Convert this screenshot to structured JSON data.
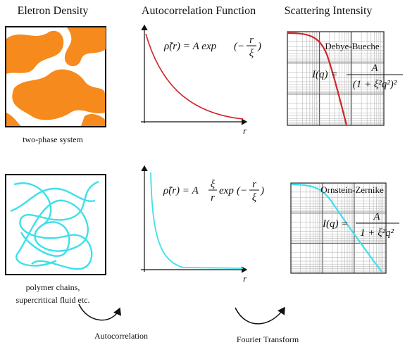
{
  "headers": [
    "Eletron Density",
    "Autocorrelation Function",
    "Scattering Intensity"
  ],
  "rows": [
    {
      "caption": [
        "two-phase system"
      ],
      "equation": [
        "ρ̃(r) = A exp",
        "(−",
        {
          "num": "r",
          "den": "ξ"
        },
        ")"
      ],
      "axis_label": "r",
      "model": "Debye-Bueche",
      "intensity": [
        "I(q) =",
        {
          "num": "A",
          "den": "(1 + ξ²q²)²"
        }
      ]
    },
    {
      "caption": [
        "polymer chains,",
        "supercritical fluid etc."
      ],
      "equation": [
        "ρ̃(r) = A",
        {
          "num": "ξ",
          "den": "r"
        },
        "exp",
        "(−",
        {
          "num": "r",
          "den": "ξ"
        },
        ")"
      ],
      "axis_label": "r",
      "model": "Ornstein-Zernike",
      "intensity": [
        "I(q) =",
        {
          "num": "A",
          "den": "1 + ξ²q²"
        }
      ]
    }
  ],
  "transforms": [
    "Autocorrelation",
    "Fourier Transform"
  ]
}
